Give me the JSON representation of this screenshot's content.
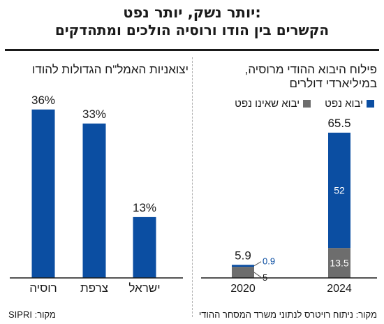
{
  "header": {
    "title": "יותר נשק, יותר נפט:",
    "subtitle": "הקשרים בין הודו ורוסיה הולכים ומתהדקים"
  },
  "colors": {
    "oil": "#0b4ea2",
    "non_oil": "#6d6d6d",
    "axis": "#1a1a1a"
  },
  "chart_data": [
    {
      "type": "bar",
      "title": "יצואניות האמל\"ח הגדולות להודו",
      "categories": [
        "רוסיה",
        "צרפת",
        "ישראל"
      ],
      "values": [
        36,
        33,
        13
      ],
      "value_labels": [
        "36%",
        "33%",
        "13%"
      ],
      "unit": "%",
      "ylim": [
        0,
        40
      ],
      "source": "מקור: SIPRI"
    },
    {
      "type": "bar",
      "stacked": true,
      "title": "פילוח היבוא ההודי מרוסיה, במיליארדי דולרים",
      "title_lines": [
        "פילוח היבוא ההודי מרוסיה,",
        "במיליארדי דולרים"
      ],
      "categories": [
        "2020",
        "2024"
      ],
      "series": [
        {
          "name": "יבוא נפט",
          "values": [
            0.9,
            52
          ],
          "labels": [
            "0.9",
            "52"
          ]
        },
        {
          "name": "יבוא שאינו נפט",
          "values": [
            5,
            13.5
          ],
          "labels": [
            "5",
            "13.5"
          ]
        }
      ],
      "totals": [
        5.9,
        65.5
      ],
      "total_labels": [
        "5.9",
        "65.5"
      ],
      "ylim": [
        0,
        70
      ],
      "source": "מקור: ניתוח רויטרס לנתוני משרד המסחר ההודי"
    }
  ]
}
